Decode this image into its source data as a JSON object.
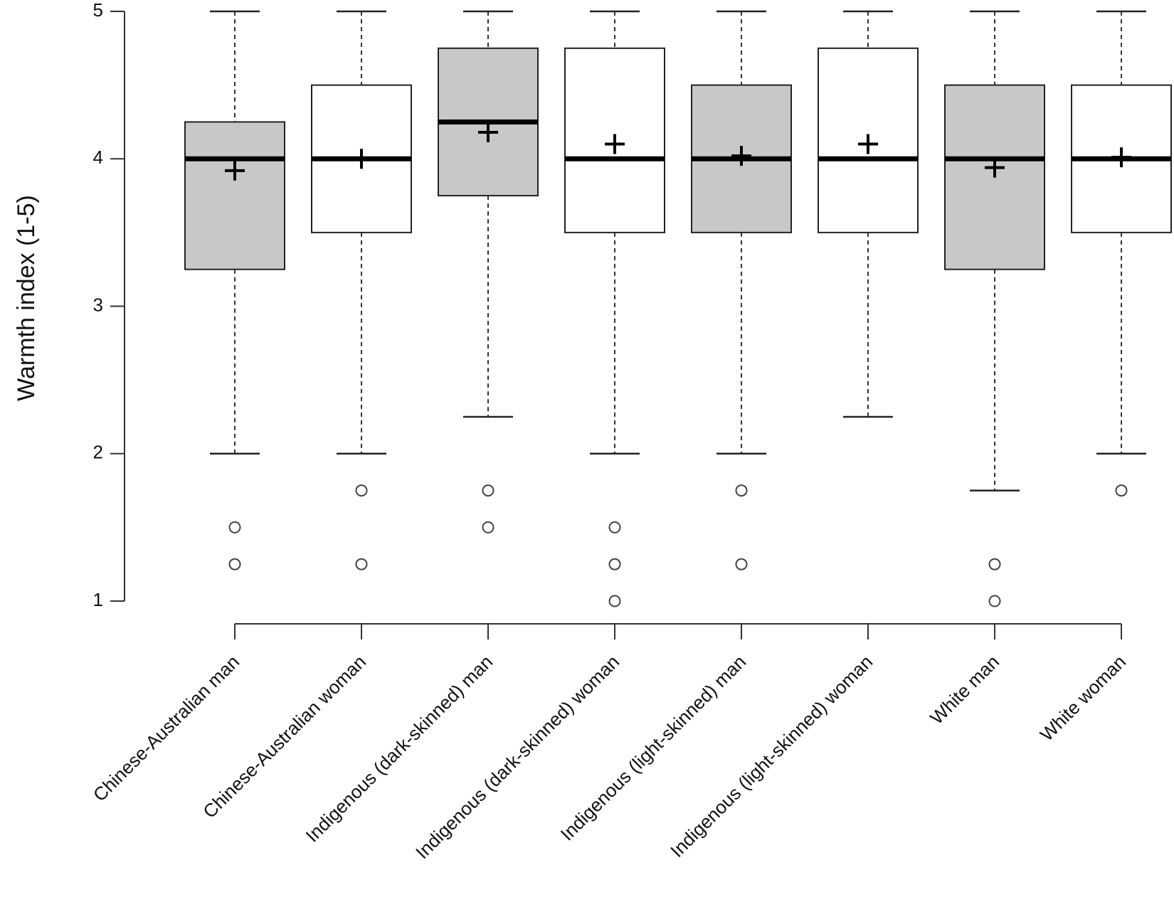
{
  "chart_data": {
    "type": "boxplot",
    "title": "",
    "xlabel": "",
    "ylabel": "Warmth index (1-5)",
    "ylim": [
      1,
      5
    ],
    "yticks": [
      1,
      2,
      3,
      4,
      5
    ],
    "categories": [
      "Chinese-Australian man",
      "Chinese-Australian woman",
      "Indigenous (dark-skinned) man",
      "Indigenous (dark-skinned) woman",
      "Indigenous (light-skinned) man",
      "Indigenous (light-skinned) woman",
      "White man",
      "White woman"
    ],
    "boxes": [
      {
        "whisker_low": 2.0,
        "q1": 3.25,
        "median": 4.0,
        "q3": 4.25,
        "whisker_high": 5.0,
        "mean": 3.92,
        "outliers": [
          1.5,
          1.25
        ],
        "fill": "#c8c8c8"
      },
      {
        "whisker_low": 2.0,
        "q1": 3.5,
        "median": 4.0,
        "q3": 4.5,
        "whisker_high": 5.0,
        "mean": 4.0,
        "outliers": [
          1.75,
          1.25
        ],
        "fill": "#ffffff"
      },
      {
        "whisker_low": 2.25,
        "q1": 3.75,
        "median": 4.25,
        "q3": 4.75,
        "whisker_high": 5.0,
        "mean": 4.18,
        "outliers": [
          1.75,
          1.5
        ],
        "fill": "#c8c8c8"
      },
      {
        "whisker_low": 2.0,
        "q1": 3.5,
        "median": 4.0,
        "q3": 4.75,
        "whisker_high": 5.0,
        "mean": 4.1,
        "outliers": [
          1.5,
          1.25,
          1.0
        ],
        "fill": "#ffffff"
      },
      {
        "whisker_low": 2.0,
        "q1": 3.5,
        "median": 4.0,
        "q3": 4.5,
        "whisker_high": 5.0,
        "mean": 4.02,
        "outliers": [
          1.75,
          1.25
        ],
        "fill": "#c8c8c8"
      },
      {
        "whisker_low": 2.25,
        "q1": 3.5,
        "median": 4.0,
        "q3": 4.75,
        "whisker_high": 5.0,
        "mean": 4.1,
        "outliers": [],
        "fill": "#ffffff"
      },
      {
        "whisker_low": 1.75,
        "q1": 3.25,
        "median": 4.0,
        "q3": 4.5,
        "whisker_high": 5.0,
        "mean": 3.94,
        "outliers": [
          1.25,
          1.0
        ],
        "fill": "#c8c8c8"
      },
      {
        "whisker_low": 2.0,
        "q1": 3.5,
        "median": 4.0,
        "q3": 4.5,
        "whisker_high": 5.0,
        "mean": 4.01,
        "outliers": [
          1.75
        ],
        "fill": "#ffffff"
      }
    ]
  }
}
